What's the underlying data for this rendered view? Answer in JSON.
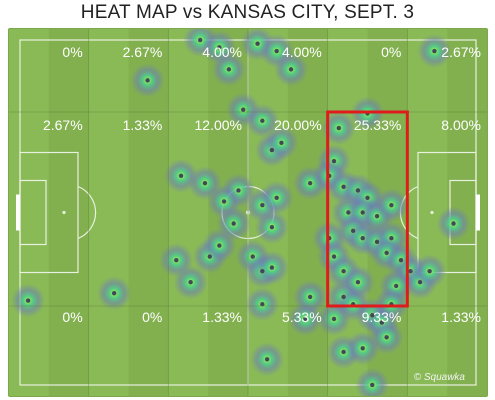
{
  "title": "HEAT MAP vs KANSAS CITY, SEPT. 3",
  "brand": "© Squawka",
  "colors": {
    "pitch": "#8aba56",
    "pitch_dark": "#82b04f",
    "lines": "#e8f0df",
    "heat_outer": "#6b7fb5",
    "heat_mid": "#49d28a",
    "heat_core": "#c7ef44",
    "dot": "#3e4a5a",
    "highlight": "#e01b1b"
  },
  "chart_data": {
    "type": "heatmap",
    "title": "HEAT MAP vs KANSAS CITY, SEPT. 3",
    "zones": [
      {
        "row": 0,
        "col": 0,
        "label": "0%"
      },
      {
        "row": 0,
        "col": 1,
        "label": "2.67%"
      },
      {
        "row": 0,
        "col": 2,
        "label": "4.00%"
      },
      {
        "row": 0,
        "col": 3,
        "label": "4.00%"
      },
      {
        "row": 0,
        "col": 4,
        "label": "0%"
      },
      {
        "row": 0,
        "col": 5,
        "label": "2.67%"
      },
      {
        "row": 1,
        "col": 0,
        "label": "2.67%"
      },
      {
        "row": 1,
        "col": 1,
        "label": "1.33%"
      },
      {
        "row": 1,
        "col": 2,
        "label": "12.00%"
      },
      {
        "row": 1,
        "col": 3,
        "label": "20.00%"
      },
      {
        "row": 1,
        "col": 4,
        "label": "25.33%"
      },
      {
        "row": 1,
        "col": 5,
        "label": "8.00%"
      },
      {
        "row": 2,
        "col": 0,
        "label": "0%"
      },
      {
        "row": 2,
        "col": 1,
        "label": "0%"
      },
      {
        "row": 2,
        "col": 2,
        "label": "1.33%"
      },
      {
        "row": 2,
        "col": 3,
        "label": "5.33%"
      },
      {
        "row": 2,
        "col": 4,
        "label": "9.33%"
      },
      {
        "row": 2,
        "col": 5,
        "label": "1.33%"
      }
    ],
    "highlighted_zone": {
      "row": 1,
      "col": 4
    },
    "touches": [
      [
        0.4,
        0.03,
        1
      ],
      [
        0.44,
        0.05,
        1
      ],
      [
        0.52,
        0.04,
        1
      ],
      [
        0.56,
        0.06,
        1
      ],
      [
        0.89,
        0.06,
        1
      ],
      [
        0.29,
        0.14,
        1
      ],
      [
        0.49,
        0.22,
        1
      ],
      [
        0.53,
        0.25,
        1
      ],
      [
        0.69,
        0.27,
        1
      ],
      [
        0.68,
        0.36,
        1
      ],
      [
        0.36,
        0.4,
        1
      ],
      [
        0.41,
        0.42,
        1
      ],
      [
        0.48,
        0.44,
        1
      ],
      [
        0.45,
        0.47,
        1
      ],
      [
        0.53,
        0.48,
        1
      ],
      [
        0.56,
        0.46,
        1
      ],
      [
        0.63,
        0.42,
        1
      ],
      [
        0.67,
        0.4,
        1
      ],
      [
        0.7,
        0.43,
        1
      ],
      [
        0.73,
        0.44,
        1
      ],
      [
        0.75,
        0.46,
        1
      ],
      [
        0.71,
        0.5,
        1
      ],
      [
        0.74,
        0.5,
        1
      ],
      [
        0.77,
        0.51,
        1
      ],
      [
        0.8,
        0.48,
        1
      ],
      [
        0.72,
        0.55,
        1
      ],
      [
        0.74,
        0.57,
        1
      ],
      [
        0.77,
        0.58,
        1
      ],
      [
        0.8,
        0.57,
        1
      ],
      [
        0.93,
        0.53,
        1
      ],
      [
        0.47,
        0.53,
        1
      ],
      [
        0.55,
        0.54,
        1
      ],
      [
        0.42,
        0.62,
        1
      ],
      [
        0.44,
        0.59,
        1
      ],
      [
        0.51,
        0.62,
        1
      ],
      [
        0.53,
        0.66,
        1
      ],
      [
        0.55,
        0.65,
        1
      ],
      [
        0.35,
        0.63,
        1
      ],
      [
        0.38,
        0.69,
        1
      ],
      [
        0.67,
        0.57,
        1
      ],
      [
        0.68,
        0.62,
        1
      ],
      [
        0.7,
        0.66,
        1
      ],
      [
        0.79,
        0.61,
        1
      ],
      [
        0.82,
        0.63,
        1
      ],
      [
        0.84,
        0.66,
        1
      ],
      [
        0.81,
        0.7,
        1
      ],
      [
        0.86,
        0.69,
        1
      ],
      [
        0.88,
        0.66,
        1
      ],
      [
        0.73,
        0.69,
        1
      ],
      [
        0.7,
        0.73,
        1
      ],
      [
        0.72,
        0.75,
        1
      ],
      [
        0.68,
        0.79,
        1
      ],
      [
        0.76,
        0.78,
        1
      ],
      [
        0.78,
        0.8,
        1
      ],
      [
        0.8,
        0.75,
        1
      ],
      [
        0.22,
        0.72,
        1
      ],
      [
        0.04,
        0.74,
        1
      ],
      [
        0.53,
        0.75,
        1
      ],
      [
        0.62,
        0.79,
        1
      ],
      [
        0.63,
        0.73,
        1
      ],
      [
        0.7,
        0.88,
        1
      ],
      [
        0.74,
        0.87,
        1
      ],
      [
        0.79,
        0.84,
        1
      ],
      [
        0.54,
        0.9,
        1
      ],
      [
        0.76,
        0.97,
        1
      ],
      [
        0.55,
        0.33,
        1
      ],
      [
        0.57,
        0.31,
        1
      ],
      [
        0.75,
        0.23,
        1
      ],
      [
        0.59,
        0.11,
        1
      ],
      [
        0.46,
        0.11,
        1
      ]
    ]
  }
}
